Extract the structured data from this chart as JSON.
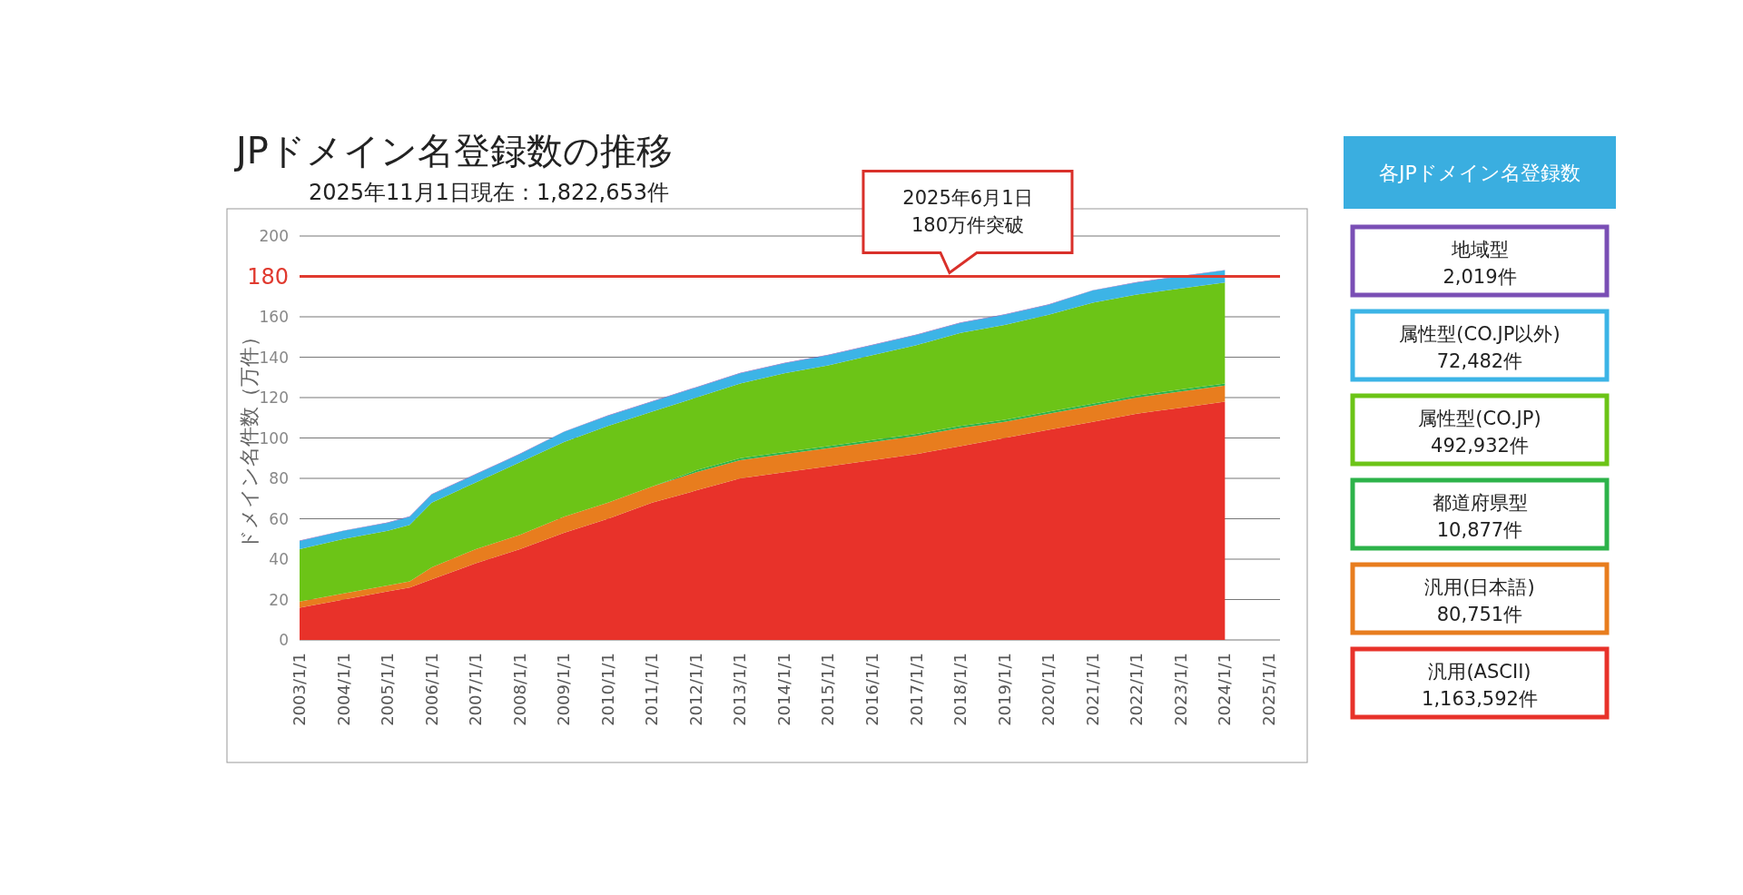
{
  "chart_data": {
    "type": "area",
    "stacked": true,
    "title": "JPドメイン名登録数の推移",
    "subtitle": "2025年11月1日現在：1,822,653件",
    "ylabel": "ドメイン名件数（万件）",
    "legend_title": "各JPドメイン名登録数",
    "legend": "right",
    "grid": "y",
    "x": [
      "2003-01",
      "2004-01",
      "2005-01",
      "2005-07",
      "2006-01",
      "2007-01",
      "2008-01",
      "2009-01",
      "2010-01",
      "2011-01",
      "2012-01",
      "2013-01",
      "2014-01",
      "2015-01",
      "2016-01",
      "2017-01",
      "2018-01",
      "2019-01",
      "2020-01",
      "2021-01",
      "2022-01",
      "2023-01",
      "2024-01"
    ],
    "xlim": [
      "2003-01",
      "2025-04"
    ],
    "xticks": [
      {
        "value": "2003-01-01",
        "label": "2003/1/1"
      },
      {
        "value": "2004-01-01",
        "label": "2004/1/1"
      },
      {
        "value": "2005-01-01",
        "label": "2005/1/1"
      },
      {
        "value": "2006-01-01",
        "label": "2006/1/1"
      },
      {
        "value": "2007-01-01",
        "label": "2007/1/1"
      },
      {
        "value": "2008-01-01",
        "label": "2008/1/1"
      },
      {
        "value": "2009-01-01",
        "label": "2009/1/1"
      },
      {
        "value": "2010-01-01",
        "label": "2010/1/1"
      },
      {
        "value": "2011-01-01",
        "label": "2011/1/1"
      },
      {
        "value": "2012-01-01",
        "label": "2012/1/1"
      },
      {
        "value": "2013-01-01",
        "label": "2013/1/1"
      },
      {
        "value": "2014-01-01",
        "label": "2014/1/1"
      },
      {
        "value": "2015-01-01",
        "label": "2015/1/1"
      },
      {
        "value": "2016-01-01",
        "label": "2016/1/1"
      },
      {
        "value": "2017-01-01",
        "label": "2017/1/1"
      },
      {
        "value": "2018-01-01",
        "label": "2018/1/1"
      },
      {
        "value": "2019-01-01",
        "label": "2019/1/1"
      },
      {
        "value": "2020-01-01",
        "label": "2020/1/1"
      },
      {
        "value": "2021-01-01",
        "label": "2021/1/1"
      },
      {
        "value": "2022-01-01",
        "label": "2022/1/1"
      },
      {
        "value": "2023-01-01",
        "label": "2023/1/1"
      },
      {
        "value": "2024-01-01",
        "label": "2024/1/1"
      },
      {
        "value": "2025-01-01",
        "label": "2025/1/1"
      }
    ],
    "ylim": [
      0,
      200
    ],
    "yticks": [
      0,
      20,
      40,
      60,
      80,
      100,
      120,
      140,
      160,
      {
        "value": 180,
        "label": null
      },
      200
    ],
    "ref_lines": [
      {
        "axis": "y",
        "value": 180,
        "label": "180",
        "color": "#e03a2f"
      }
    ],
    "annotations": [
      {
        "text": "2025年6月1日\n180万件突破",
        "x": "2017-10",
        "y": 180
      },
      "2,019件",
      "72,482件",
      "492,932件",
      "10,877件",
      "80,751件",
      "1,163,592件"
    ],
    "series": [
      {
        "name": "汎用(ASCII)",
        "color": "#e8322a",
        "values": [
          16,
          20,
          24,
          26,
          30,
          38,
          45,
          53,
          60,
          68,
          74,
          80,
          83,
          86,
          89,
          92,
          96,
          100,
          104,
          108,
          112,
          115,
          118
        ]
      },
      {
        "name": "汎用(日本語)",
        "color": "#e87d1e",
        "values": [
          3,
          3,
          3,
          3,
          6,
          7,
          7,
          8,
          8,
          8,
          9,
          9,
          9,
          9,
          9,
          9,
          9,
          8,
          8,
          8,
          8,
          8,
          8
        ]
      },
      {
        "name": "都道府県型",
        "color": "#2db34a",
        "values": [
          0,
          0,
          0,
          0,
          0,
          0,
          0,
          0,
          0,
          0,
          1,
          1,
          1,
          1,
          1,
          1,
          1,
          1,
          1,
          1,
          1,
          1,
          1
        ]
      },
      {
        "name": "属性型(CO.JP)",
        "color": "#6cc417",
        "values": [
          26,
          27,
          27,
          28,
          32,
          33,
          36,
          37,
          38,
          37,
          36,
          37,
          39,
          40,
          42,
          44,
          46,
          47,
          48,
          50,
          50,
          50,
          50
        ]
      },
      {
        "name": "属性型(CO.JP以外)",
        "color": "#3cb4e6",
        "values": [
          4,
          4,
          4,
          4,
          4,
          4,
          4,
          5,
          5,
          5,
          5,
          5,
          5,
          5,
          5,
          5,
          5,
          5,
          5,
          6,
          6,
          6,
          6
        ]
      },
      {
        "name": "地域型",
        "color": "#7a4fb5",
        "values": [
          0.2,
          0.2,
          0.2,
          0.2,
          0.2,
          0.2,
          0.2,
          0.2,
          0.2,
          0.2,
          0.2,
          0.2,
          0.2,
          0.2,
          0.2,
          0.2,
          0.2,
          0.2,
          0.2,
          0.2,
          0.2,
          0.2,
          0.2
        ]
      }
    ]
  }
}
